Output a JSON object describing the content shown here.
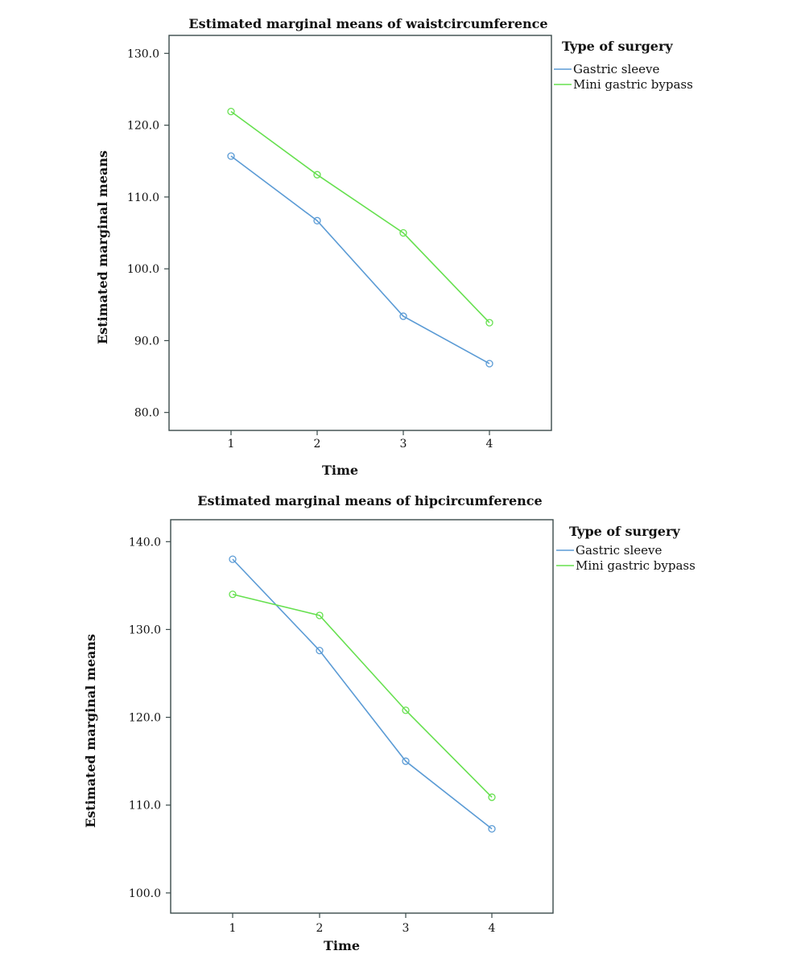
{
  "chart_data": [
    {
      "type": "line",
      "title": "Estimated marginal means of waistcircumference",
      "xlabel": "Time",
      "ylabel": "Estimated marginal means",
      "categories": [
        "1",
        "2",
        "3",
        "4"
      ],
      "ylim": [
        77.5,
        132.5
      ],
      "yticks": [
        "80.0",
        "90.0",
        "100.0",
        "110.0",
        "120.0",
        "130.0"
      ],
      "legend_title": "Type of surgery",
      "legend_position": "right",
      "series": [
        {
          "name": "Gastric sleeve",
          "color": "#5b9bd5",
          "values": [
            115.7,
            106.7,
            93.4,
            86.8
          ]
        },
        {
          "name": "Mini gastric bypass",
          "color": "#66e04f",
          "values": [
            121.9,
            113.1,
            105.0,
            92.5
          ]
        }
      ]
    },
    {
      "type": "line",
      "title": "Estimated marginal means of hipcircumference",
      "xlabel": "Time",
      "ylabel": "Estimated marginal means",
      "categories": [
        "1",
        "2",
        "3",
        "4"
      ],
      "ylim": [
        97.7,
        142.5
      ],
      "yticks": [
        "100.0",
        "110.0",
        "120.0",
        "130.0",
        "140.0"
      ],
      "legend_title": "Type of surgery",
      "legend_position": "right",
      "series": [
        {
          "name": "Gastric sleeve",
          "color": "#5b9bd5",
          "values": [
            138.0,
            127.6,
            115.0,
            107.3
          ]
        },
        {
          "name": "Mini gastric bypass",
          "color": "#66e04f",
          "values": [
            134.0,
            131.6,
            120.8,
            110.9
          ]
        }
      ]
    }
  ]
}
